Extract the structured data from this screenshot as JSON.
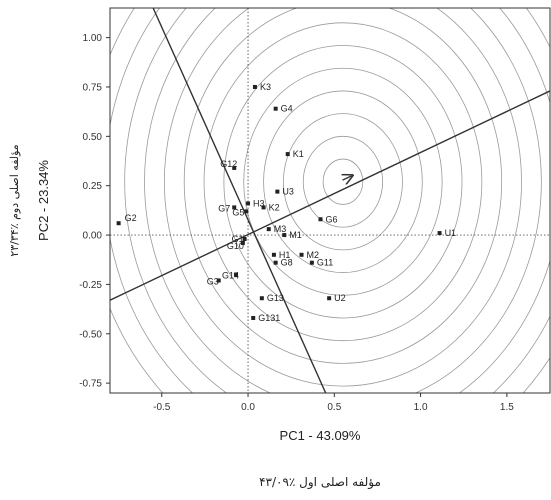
{
  "chart_data": {
    "type": "scatter",
    "xlabel": "PC1 - 43.09%",
    "ylabel": "PC2 - 23.34%",
    "xlabel_fa": "مؤلفه اصلی اول ٪۴۳/۰۹",
    "ylabel_fa": "مؤلفه اصلی دوم ٪۲۳/۳۴",
    "xlim": [
      -0.8,
      1.75
    ],
    "ylim": [
      -0.8,
      1.15
    ],
    "xticks": [
      {
        "value": -0.5,
        "label": "-0.5"
      },
      {
        "value": 0.0,
        "label": "0.0"
      },
      {
        "value": 0.5,
        "label": "0.5"
      },
      {
        "value": 1.0,
        "label": "1.0"
      },
      {
        "value": 1.5,
        "label": "1.5"
      }
    ],
    "yticks": [
      {
        "value": 1.0,
        "label": "1.00"
      },
      {
        "value": 0.75,
        "label": "0.75"
      },
      {
        "value": 0.5,
        "label": "0.50"
      },
      {
        "value": 0.25,
        "label": "0.25"
      },
      {
        "value": 0.0,
        "label": "0.00"
      },
      {
        "value": -0.25,
        "label": "-0.25"
      },
      {
        "value": -0.5,
        "label": "-0.50"
      },
      {
        "value": -0.75,
        "label": "-0.75"
      }
    ],
    "grid": false,
    "reference_lines": {
      "x": 0,
      "y": 0,
      "style": "dotted"
    },
    "circles_center": [
      0.55,
      0.27
    ],
    "circles_count": 13,
    "circles_step": 0.115,
    "average_environment_axis": {
      "from": [
        -0.8,
        -0.33
      ],
      "to": [
        1.75,
        0.73
      ],
      "arrow_at": [
        0.6,
        0.3
      ]
    },
    "perpendicular_line": {
      "from": [
        -0.55,
        1.15
      ],
      "to": [
        0.45,
        -0.8
      ]
    },
    "points": [
      {
        "label": "G2",
        "x": -0.75,
        "y": 0.06
      },
      {
        "label": "K3",
        "x": 0.04,
        "y": 0.75
      },
      {
        "label": "G4",
        "x": 0.16,
        "y": 0.64
      },
      {
        "label": "K1",
        "x": 0.23,
        "y": 0.41
      },
      {
        "label": "G12",
        "x": -0.08,
        "y": 0.34
      },
      {
        "label": "U3",
        "x": 0.17,
        "y": 0.22
      },
      {
        "label": "H3",
        "x": 0.0,
        "y": 0.16
      },
      {
        "label": "G7",
        "x": -0.08,
        "y": 0.14
      },
      {
        "label": "K2",
        "x": 0.09,
        "y": 0.14
      },
      {
        "label": "G5",
        "x": -0.01,
        "y": 0.12
      },
      {
        "label": "G6",
        "x": 0.42,
        "y": 0.08
      },
      {
        "label": "M3",
        "x": 0.12,
        "y": 0.03
      },
      {
        "label": "U1",
        "x": 1.11,
        "y": 0.01
      },
      {
        "label": "M1",
        "x": 0.21,
        "y": 0.0
      },
      {
        "label": "G1",
        "x": -0.02,
        "y": -0.02
      },
      {
        "label": "G10",
        "x": -0.03,
        "y": -0.04
      },
      {
        "label": "M2",
        "x": 0.31,
        "y": -0.1
      },
      {
        "label": "H1",
        "x": 0.15,
        "y": -0.1
      },
      {
        "label": "G8",
        "x": 0.16,
        "y": -0.14
      },
      {
        "label": "G11",
        "x": 0.37,
        "y": -0.14
      },
      {
        "label": "G14",
        "x": -0.07,
        "y": -0.2
      },
      {
        "label": "G3",
        "x": -0.17,
        "y": -0.23
      },
      {
        "label": "G13",
        "x": 0.08,
        "y": -0.32
      },
      {
        "label": "U2",
        "x": 0.47,
        "y": -0.32
      },
      {
        "label": "G131",
        "x": 0.03,
        "y": -0.42
      }
    ]
  }
}
